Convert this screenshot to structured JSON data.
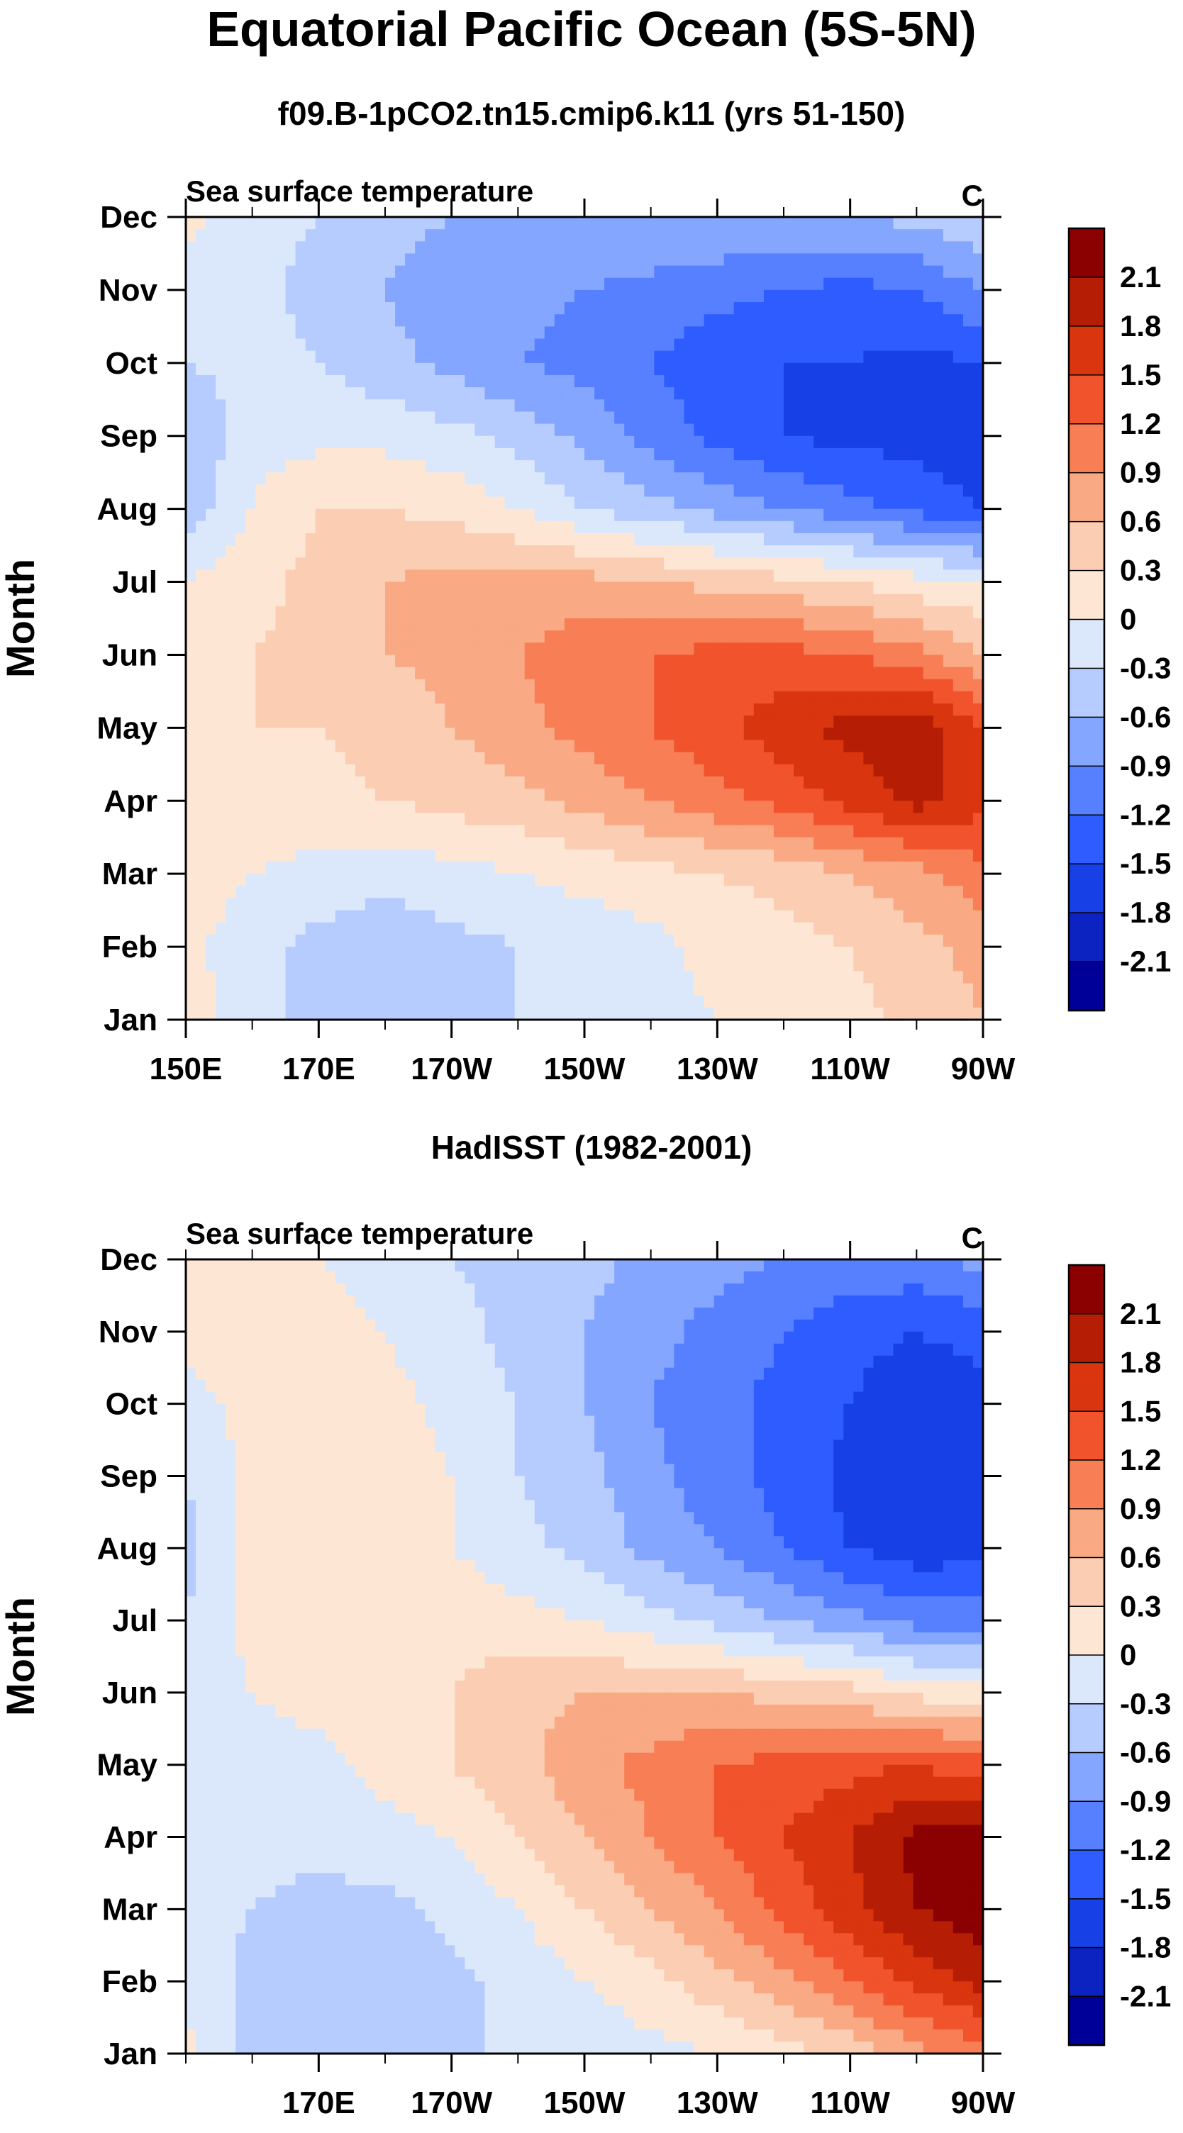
{
  "chart_data": [
    {
      "type": "heatmap",
      "figure_title": "Equatorial Pacific Ocean (5S-5N)",
      "title": "f09.B-1pCO2.tn15.cmip6.k11 (yrs 51-150)",
      "left_label": "Sea surface temperature",
      "right_label": "C",
      "ylabel": "Month",
      "xlabel": "",
      "x_ticks": [
        "150E",
        "170E",
        "170W",
        "150W",
        "130W",
        "110W",
        "90W"
      ],
      "y_ticks": [
        "Jan",
        "Feb",
        "Mar",
        "Apr",
        "May",
        "Jun",
        "Jul",
        "Aug",
        "Sep",
        "Oct",
        "Nov",
        "Dec"
      ],
      "colorbar_levels": [
        "2.1",
        "1.8",
        "1.5",
        "1.2",
        "0.9",
        "0.6",
        "0.3",
        "0",
        "-0.3",
        "-0.6",
        "-0.9",
        "-1.2",
        "-1.5",
        "-1.8",
        "-2.1"
      ],
      "x_values": [
        150,
        160,
        170,
        180,
        190,
        200,
        210,
        220,
        230,
        240,
        250,
        260,
        270
      ],
      "months": [
        1,
        2,
        3,
        4,
        5,
        6,
        7,
        8,
        9,
        10,
        11,
        12
      ],
      "values": [
        [
          0.1,
          -0.1,
          -0.5,
          -0.6,
          -0.4,
          -0.3,
          -0.2,
          -0.1,
          0.0,
          0.1,
          0.2,
          0.4,
          0.6
        ],
        [
          0.1,
          -0.2,
          -0.4,
          -0.5,
          -0.4,
          -0.3,
          -0.2,
          -0.1,
          0.1,
          0.2,
          0.3,
          0.5,
          0.7
        ],
        [
          0.2,
          0.0,
          -0.1,
          -0.2,
          -0.1,
          0.0,
          0.1,
          0.2,
          0.3,
          0.4,
          0.6,
          0.8,
          1.1
        ],
        [
          0.3,
          0.2,
          0.2,
          0.3,
          0.4,
          0.5,
          0.7,
          0.9,
          1.1,
          1.3,
          1.6,
          1.9,
          1.6
        ],
        [
          0.3,
          0.3,
          0.3,
          0.4,
          0.6,
          0.8,
          1.0,
          1.2,
          1.4,
          1.7,
          1.9,
          2.0,
          1.5
        ],
        [
          0.2,
          0.3,
          0.4,
          0.6,
          0.7,
          0.9,
          1.1,
          1.2,
          1.3,
          1.3,
          1.2,
          1.0,
          0.6
        ],
        [
          0.0,
          0.2,
          0.4,
          0.6,
          0.7,
          0.7,
          0.7,
          0.6,
          0.5,
          0.4,
          0.3,
          0.1,
          0.0
        ],
        [
          -0.5,
          0.0,
          0.3,
          0.3,
          0.2,
          0.0,
          -0.3,
          -0.5,
          -0.7,
          -0.9,
          -1.1,
          -1.3,
          -1.5
        ],
        [
          -0.6,
          -0.1,
          -0.1,
          -0.1,
          -0.2,
          -0.4,
          -0.7,
          -1.0,
          -1.3,
          -1.5,
          -1.6,
          -1.6,
          -1.8
        ],
        [
          -0.3,
          -0.2,
          -0.3,
          -0.5,
          -0.7,
          -0.9,
          -1.0,
          -1.2,
          -1.4,
          -1.5,
          -1.5,
          -1.6,
          -1.5
        ],
        [
          -0.2,
          -0.2,
          -0.4,
          -0.6,
          -0.8,
          -0.8,
          -0.9,
          -1.0,
          -1.1,
          -1.2,
          -1.3,
          -1.2,
          -0.9
        ],
        [
          0.1,
          -0.2,
          -0.3,
          -0.5,
          -0.6,
          -0.6,
          -0.6,
          -0.6,
          -0.6,
          -0.6,
          -0.6,
          -0.5,
          -0.3
        ]
      ]
    },
    {
      "type": "heatmap",
      "title": "HadISST (1982-2001)",
      "left_label": "Sea surface temperature",
      "right_label": "C",
      "ylabel": "Month",
      "xlabel": "",
      "x_ticks": [
        "170E",
        "170W",
        "150W",
        "130W",
        "110W",
        "90W"
      ],
      "y_ticks": [
        "Jan",
        "Feb",
        "Mar",
        "Apr",
        "May",
        "Jun",
        "Jul",
        "Aug",
        "Sep",
        "Oct",
        "Nov",
        "Dec"
      ],
      "colorbar_levels": [
        "2.1",
        "1.8",
        "1.5",
        "1.2",
        "0.9",
        "0.6",
        "0.3",
        "0",
        "-0.3",
        "-0.6",
        "-0.9",
        "-1.2",
        "-1.5",
        "-1.8",
        "-2.1"
      ],
      "x_values": [
        150,
        160,
        170,
        180,
        190,
        200,
        210,
        220,
        230,
        240,
        250,
        260,
        270
      ],
      "months": [
        1,
        2,
        3,
        4,
        5,
        6,
        7,
        8,
        9,
        10,
        11,
        12
      ],
      "values": [
        [
          0.1,
          -0.4,
          -0.5,
          -0.4,
          -0.3,
          -0.3,
          -0.2,
          -0.1,
          0.0,
          0.2,
          0.4,
          0.8,
          1.1
        ],
        [
          -0.1,
          -0.4,
          -0.5,
          -0.5,
          -0.4,
          -0.2,
          0.0,
          0.2,
          0.5,
          0.8,
          1.2,
          1.6,
          1.9
        ],
        [
          -0.2,
          -0.3,
          -0.4,
          -0.4,
          -0.2,
          0.0,
          0.3,
          0.6,
          0.9,
          1.3,
          1.7,
          2.1,
          2.3
        ],
        [
          -0.2,
          -0.2,
          -0.2,
          -0.1,
          0.0,
          0.3,
          0.6,
          0.9,
          1.2,
          1.5,
          1.8,
          2.2,
          2.2
        ],
        [
          -0.1,
          -0.1,
          -0.1,
          0.1,
          0.3,
          0.5,
          0.8,
          1.0,
          1.2,
          1.3,
          1.4,
          1.5,
          1.3
        ],
        [
          -0.2,
          0.0,
          0.1,
          0.2,
          0.3,
          0.5,
          0.6,
          0.6,
          0.6,
          0.5,
          0.4,
          0.2,
          0.1
        ],
        [
          -0.3,
          0.1,
          0.1,
          0.2,
          0.2,
          0.1,
          0.0,
          -0.2,
          -0.4,
          -0.6,
          -0.8,
          -1.0,
          -1.0
        ],
        [
          -0.4,
          0.1,
          0.2,
          0.1,
          0.0,
          -0.2,
          -0.4,
          -0.7,
          -0.9,
          -1.2,
          -1.5,
          -1.7,
          -1.6
        ],
        [
          -0.3,
          0.1,
          0.3,
          0.2,
          0.0,
          -0.3,
          -0.5,
          -0.8,
          -1.1,
          -1.3,
          -1.6,
          -1.8,
          -1.8
        ],
        [
          -0.1,
          0.1,
          0.2,
          0.1,
          -0.1,
          -0.3,
          -0.6,
          -0.9,
          -1.1,
          -1.3,
          -1.5,
          -1.7,
          -1.6
        ],
        [
          0.1,
          0.1,
          0.1,
          0.0,
          -0.2,
          -0.4,
          -0.6,
          -0.8,
          -1.0,
          -1.2,
          -1.4,
          -1.5,
          -1.4
        ],
        [
          0.1,
          0.1,
          0.0,
          -0.1,
          -0.3,
          -0.4,
          -0.5,
          -0.7,
          -0.8,
          -0.9,
          -1.0,
          -1.0,
          -0.8
        ]
      ]
    }
  ],
  "colors": {
    "palette": [
      "#000099",
      "#0c23c2",
      "#1740e6",
      "#2e5cff",
      "#5680ff",
      "#84a6ff",
      "#b6ccff",
      "#dbe8fc",
      "#fde7d4",
      "#fbcdb2",
      "#f9a984",
      "#f77e55",
      "#f1532d",
      "#d9350e",
      "#b51e04",
      "#8b0000"
    ]
  }
}
